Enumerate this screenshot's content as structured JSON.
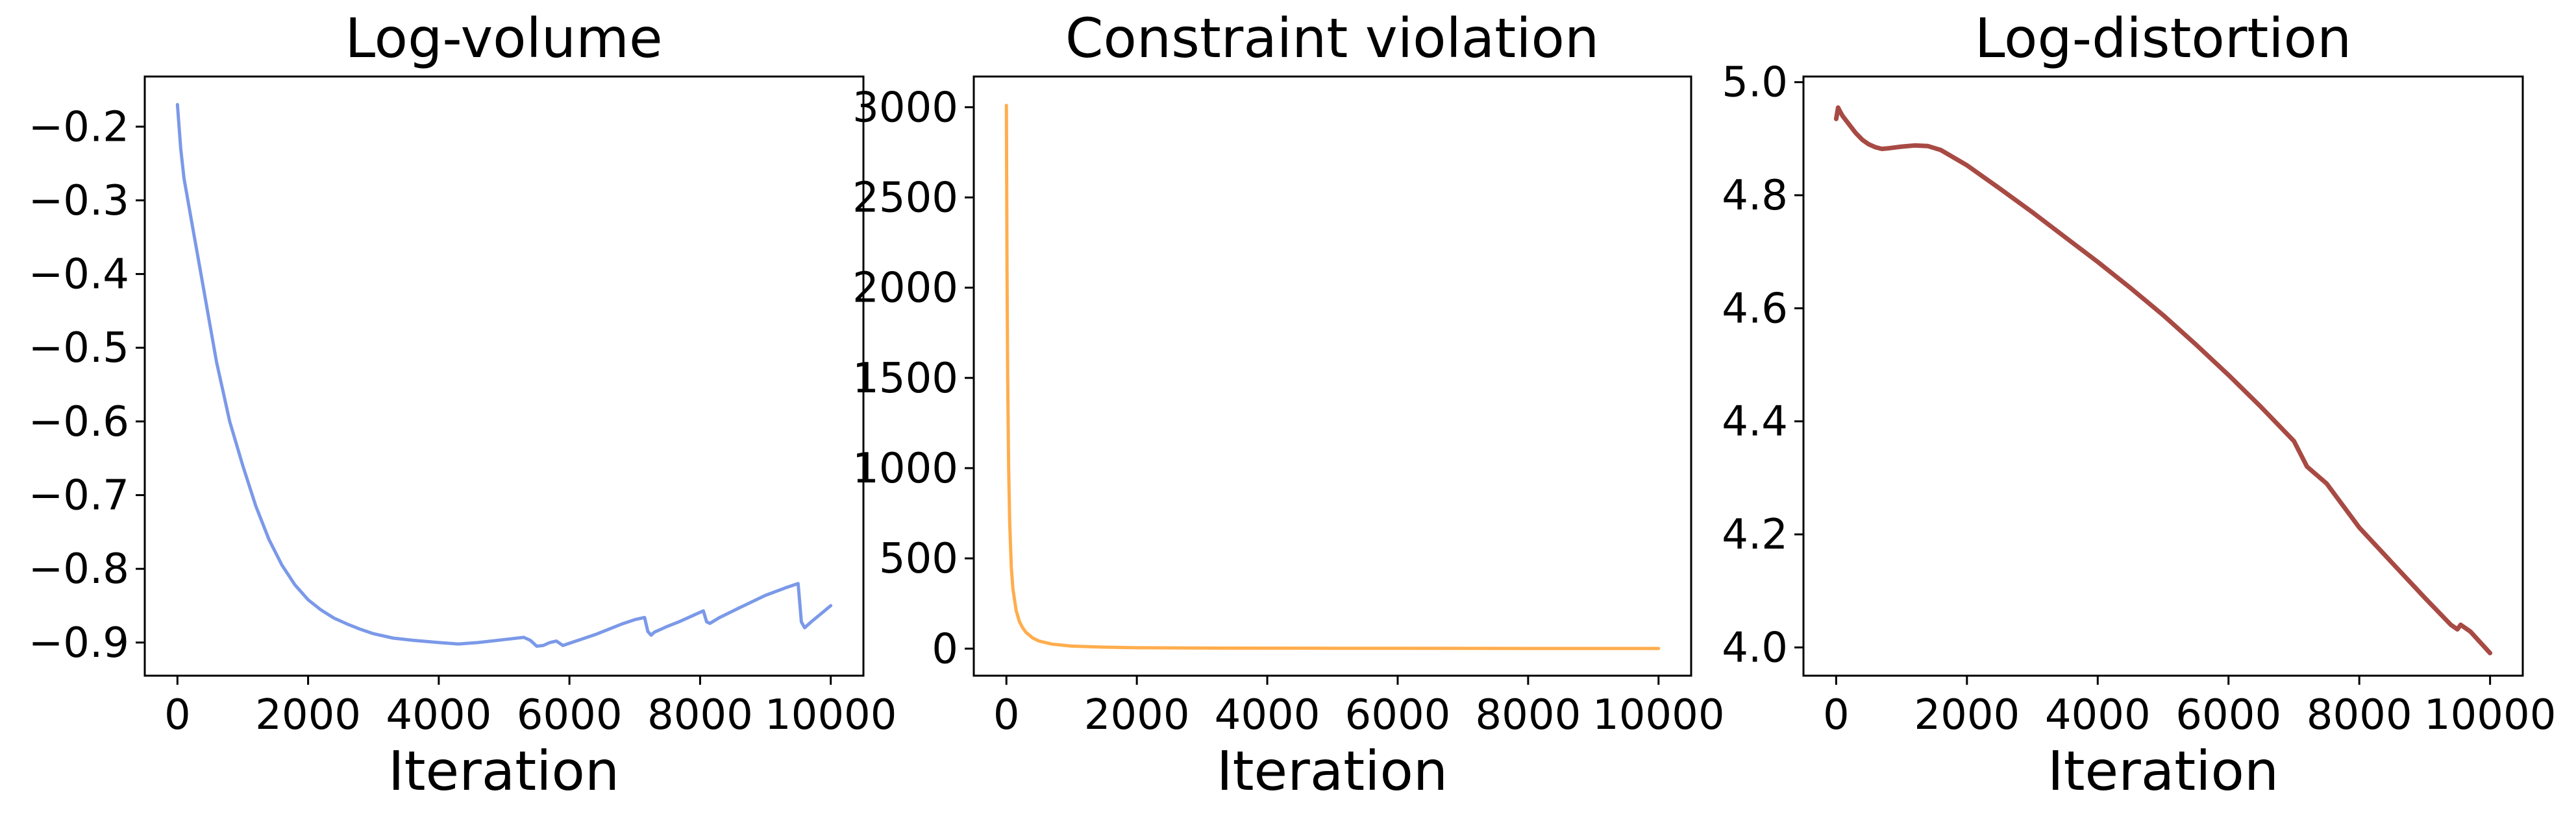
{
  "chart_data": [
    {
      "type": "line",
      "title": "Log-volume",
      "xlabel": "Iteration",
      "ylabel": "",
      "xlim": [
        -500,
        10500
      ],
      "ylim": [
        -0.945,
        -0.132
      ],
      "xticks": [
        0,
        2000,
        4000,
        6000,
        8000,
        10000
      ],
      "xtick_labels": [
        "0",
        "2000",
        "4000",
        "6000",
        "8000",
        "10000"
      ],
      "yticks": [
        -0.2,
        -0.3,
        -0.4,
        -0.5,
        -0.6,
        -0.7,
        -0.8,
        -0.9
      ],
      "ytick_labels": [
        "−0.2",
        "−0.3",
        "−0.4",
        "−0.5",
        "−0.6",
        "−0.7",
        "−0.8",
        "−0.9"
      ],
      "grid": false,
      "color": "#7b99e8",
      "series": [
        {
          "x": [
            0,
            50,
            100,
            200,
            300,
            400,
            500,
            600,
            700,
            800,
            900,
            1000,
            1200,
            1400,
            1600,
            1800,
            2000,
            2200,
            2400,
            2600,
            2800,
            3000,
            3300,
            3600,
            4000,
            4300,
            4600,
            5000,
            5300,
            5400,
            5500,
            5600,
            5700,
            5800,
            5900,
            6000,
            6200,
            6400,
            6600,
            6800,
            7000,
            7150,
            7200,
            7250,
            7300,
            7500,
            7700,
            7900,
            8050,
            8100,
            8150,
            8300,
            8600,
            9000,
            9300,
            9500,
            9550,
            9600,
            9700,
            9850,
            10000
          ],
          "y": [
            -0.17,
            -0.23,
            -0.27,
            -0.32,
            -0.37,
            -0.42,
            -0.47,
            -0.52,
            -0.56,
            -0.6,
            -0.63,
            -0.66,
            -0.715,
            -0.76,
            -0.795,
            -0.822,
            -0.842,
            -0.856,
            -0.867,
            -0.875,
            -0.882,
            -0.888,
            -0.894,
            -0.897,
            -0.9,
            -0.902,
            -0.9,
            -0.896,
            -0.893,
            -0.897,
            -0.905,
            -0.904,
            -0.9,
            -0.898,
            -0.904,
            -0.901,
            -0.895,
            -0.889,
            -0.882,
            -0.875,
            -0.869,
            -0.866,
            -0.885,
            -0.89,
            -0.886,
            -0.878,
            -0.871,
            -0.863,
            -0.857,
            -0.872,
            -0.874,
            -0.866,
            -0.853,
            -0.836,
            -0.826,
            -0.82,
            -0.872,
            -0.88,
            -0.872,
            -0.861,
            -0.85
          ]
        }
      ]
    },
    {
      "type": "line",
      "title": "Constraint violation",
      "xlabel": "Iteration",
      "ylabel": "",
      "xlim": [
        -500,
        10500
      ],
      "ylim": [
        -150,
        3170
      ],
      "xticks": [
        0,
        2000,
        4000,
        6000,
        8000,
        10000
      ],
      "xtick_labels": [
        "0",
        "2000",
        "4000",
        "6000",
        "8000",
        "10000"
      ],
      "yticks": [
        0,
        500,
        1000,
        1500,
        2000,
        2500,
        3000
      ],
      "ytick_labels": [
        "0",
        "500",
        "1000",
        "1500",
        "2000",
        "2500",
        "3000"
      ],
      "grid": false,
      "color": "#ffad4d",
      "series": [
        {
          "x": [
            0,
            10,
            20,
            35,
            50,
            75,
            100,
            150,
            200,
            250,
            300,
            400,
            500,
            700,
            1000,
            1500,
            2000,
            3000,
            5000,
            8000,
            10000
          ],
          "y": [
            3010,
            2100,
            1500,
            1000,
            700,
            450,
            330,
            210,
            150,
            115,
            90,
            60,
            42,
            25,
            14,
            8,
            5,
            3,
            2,
            1,
            1
          ]
        }
      ]
    },
    {
      "type": "line",
      "title": "Log-distortion",
      "xlabel": "Iteration",
      "ylabel": "",
      "xlim": [
        -500,
        10500
      ],
      "ylim": [
        3.95,
        5.01
      ],
      "xticks": [
        0,
        2000,
        4000,
        6000,
        8000,
        10000
      ],
      "xtick_labels": [
        "0",
        "2000",
        "4000",
        "6000",
        "8000",
        "10000"
      ],
      "yticks": [
        4.0,
        4.2,
        4.4,
        4.6,
        4.8,
        5.0
      ],
      "ytick_labels": [
        "4.0",
        "4.2",
        "4.4",
        "4.6",
        "4.8",
        "5.0"
      ],
      "grid": false,
      "color": "#a84a44",
      "series": [
        {
          "x": [
            0,
            30,
            60,
            100,
            200,
            300,
            400,
            500,
            600,
            700,
            800,
            1000,
            1200,
            1400,
            1600,
            2000,
            2500,
            3000,
            3500,
            4000,
            4500,
            5000,
            5500,
            6000,
            6500,
            7000,
            7200,
            7500,
            8000,
            8500,
            9000,
            9400,
            9500,
            9550,
            9700,
            10000
          ],
          "y": [
            4.935,
            4.955,
            4.948,
            4.94,
            4.925,
            4.91,
            4.898,
            4.89,
            4.885,
            4.882,
            4.883,
            4.886,
            4.888,
            4.887,
            4.88,
            4.853,
            4.812,
            4.77,
            4.726,
            4.682,
            4.636,
            4.588,
            4.536,
            4.482,
            4.425,
            4.365,
            4.32,
            4.29,
            4.212,
            4.15,
            4.088,
            4.04,
            4.032,
            4.04,
            4.028,
            3.99
          ]
        }
      ]
    }
  ]
}
